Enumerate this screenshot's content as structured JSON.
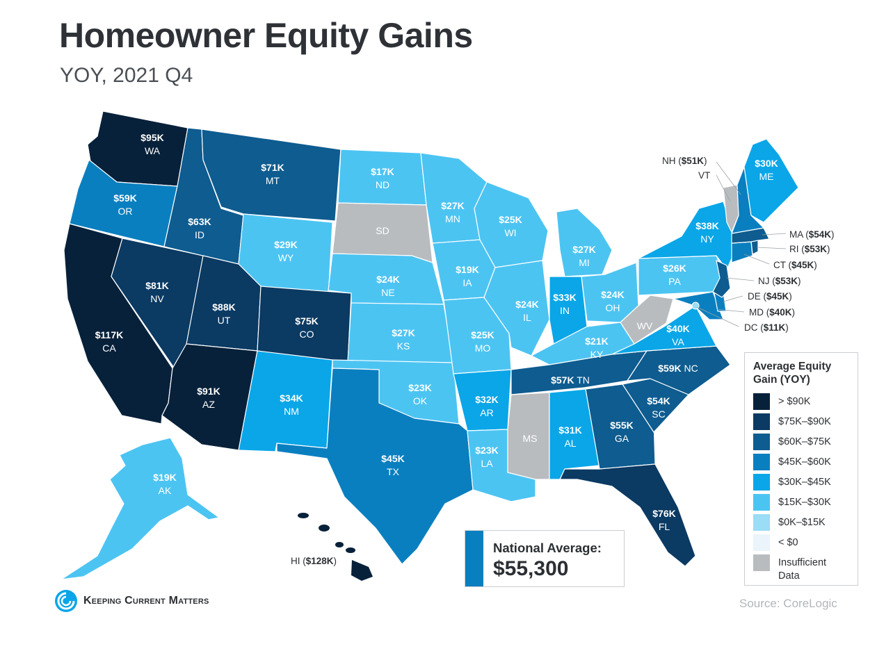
{
  "header": {
    "title": "Homeowner Equity Gains",
    "subtitle": "YOY, 2021 Q4"
  },
  "colors": {
    "gt90": "#08213a",
    "75_90": "#0b3a63",
    "60_75": "#0e5c90",
    "45_60": "#0a7fc0",
    "30_45": "#0aa6e8",
    "15_30": "#4cc4f2",
    "0_15": "#9bdcf6",
    "lt0": "#eaf4fa",
    "insufficient": "#b9bcbf"
  },
  "states": {
    "WA": {
      "abbr": "WA",
      "value": "$95K"
    },
    "OR": {
      "abbr": "OR",
      "value": "$59K"
    },
    "CA": {
      "abbr": "CA",
      "value": "$117K"
    },
    "NV": {
      "abbr": "NV",
      "value": "$81K"
    },
    "ID": {
      "abbr": "ID",
      "value": "$63K"
    },
    "MT": {
      "abbr": "MT",
      "value": "$71K"
    },
    "WY": {
      "abbr": "WY",
      "value": "$29K"
    },
    "UT": {
      "abbr": "UT",
      "value": "$88K"
    },
    "AZ": {
      "abbr": "AZ",
      "value": "$91K"
    },
    "CO": {
      "abbr": "CO",
      "value": "$75K"
    },
    "NM": {
      "abbr": "NM",
      "value": "$34K"
    },
    "ND": {
      "abbr": "ND",
      "value": "$17K"
    },
    "SD": {
      "abbr": "SD",
      "value": ""
    },
    "NE": {
      "abbr": "NE",
      "value": "$24K"
    },
    "KS": {
      "abbr": "KS",
      "value": "$27K"
    },
    "OK": {
      "abbr": "OK",
      "value": "$23K"
    },
    "TX": {
      "abbr": "TX",
      "value": "$45K"
    },
    "MN": {
      "abbr": "MN",
      "value": "$27K"
    },
    "IA": {
      "abbr": "IA",
      "value": "$19K"
    },
    "MO": {
      "abbr": "MO",
      "value": "$25K"
    },
    "AR": {
      "abbr": "AR",
      "value": "$32K"
    },
    "LA": {
      "abbr": "LA",
      "value": "$23K"
    },
    "WI": {
      "abbr": "WI",
      "value": "$25K"
    },
    "IL": {
      "abbr": "IL",
      "value": "$24K"
    },
    "MI": {
      "abbr": "MI",
      "value": "$27K"
    },
    "IN": {
      "abbr": "IN",
      "value": "$33K"
    },
    "OH": {
      "abbr": "OH",
      "value": "$24K"
    },
    "KY": {
      "abbr": "KY",
      "value": "$21K"
    },
    "TN": {
      "abbr": "TN",
      "value": "$57K"
    },
    "MS": {
      "abbr": "MS",
      "value": ""
    },
    "AL": {
      "abbr": "AL",
      "value": "$31K"
    },
    "GA": {
      "abbr": "GA",
      "value": "$55K"
    },
    "FL": {
      "abbr": "FL",
      "value": "$76K"
    },
    "SC": {
      "abbr": "SC",
      "value": "$54K"
    },
    "NC": {
      "abbr": "NC",
      "value": "$59K"
    },
    "VA": {
      "abbr": "VA",
      "value": "$40K"
    },
    "WV": {
      "abbr": "WV",
      "value": ""
    },
    "PA": {
      "abbr": "PA",
      "value": "$26K"
    },
    "NY": {
      "abbr": "NY",
      "value": "$38K"
    },
    "ME": {
      "abbr": "ME",
      "value": "$30K"
    },
    "AK": {
      "abbr": "AK",
      "value": "$19K"
    }
  },
  "callouts": {
    "NH": {
      "abbr": "NH",
      "value": "$51K"
    },
    "VT": {
      "abbr": "VT",
      "value": ""
    },
    "MA": {
      "abbr": "MA",
      "value": "$54K"
    },
    "RI": {
      "abbr": "RI",
      "value": "$53K"
    },
    "CT": {
      "abbr": "CT",
      "value": "$45K"
    },
    "NJ": {
      "abbr": "NJ",
      "value": "$53K"
    },
    "DE": {
      "abbr": "DE",
      "value": "$45K"
    },
    "MD": {
      "abbr": "MD",
      "value": "$40K"
    },
    "DC": {
      "abbr": "DC",
      "value": "$11K"
    },
    "HI": {
      "abbr": "HI",
      "value": "$128K"
    }
  },
  "legend": {
    "title": "Average Equity Gain (YOY)",
    "items": [
      {
        "label": "> $90K"
      },
      {
        "label": "$75K–$90K"
      },
      {
        "label": "$60K–$75K"
      },
      {
        "label": "$45K–$60K"
      },
      {
        "label": "$30K–$45K"
      },
      {
        "label": "$15K–$30K"
      },
      {
        "label": "$0K–$15K"
      },
      {
        "label": "< $0"
      },
      {
        "label": "Insufficient Data"
      }
    ]
  },
  "national_average": {
    "label": "National Average:",
    "value": "$55,300"
  },
  "brand": {
    "name": "Keeping Current Matters"
  },
  "source": "Source: CoreLogic"
}
